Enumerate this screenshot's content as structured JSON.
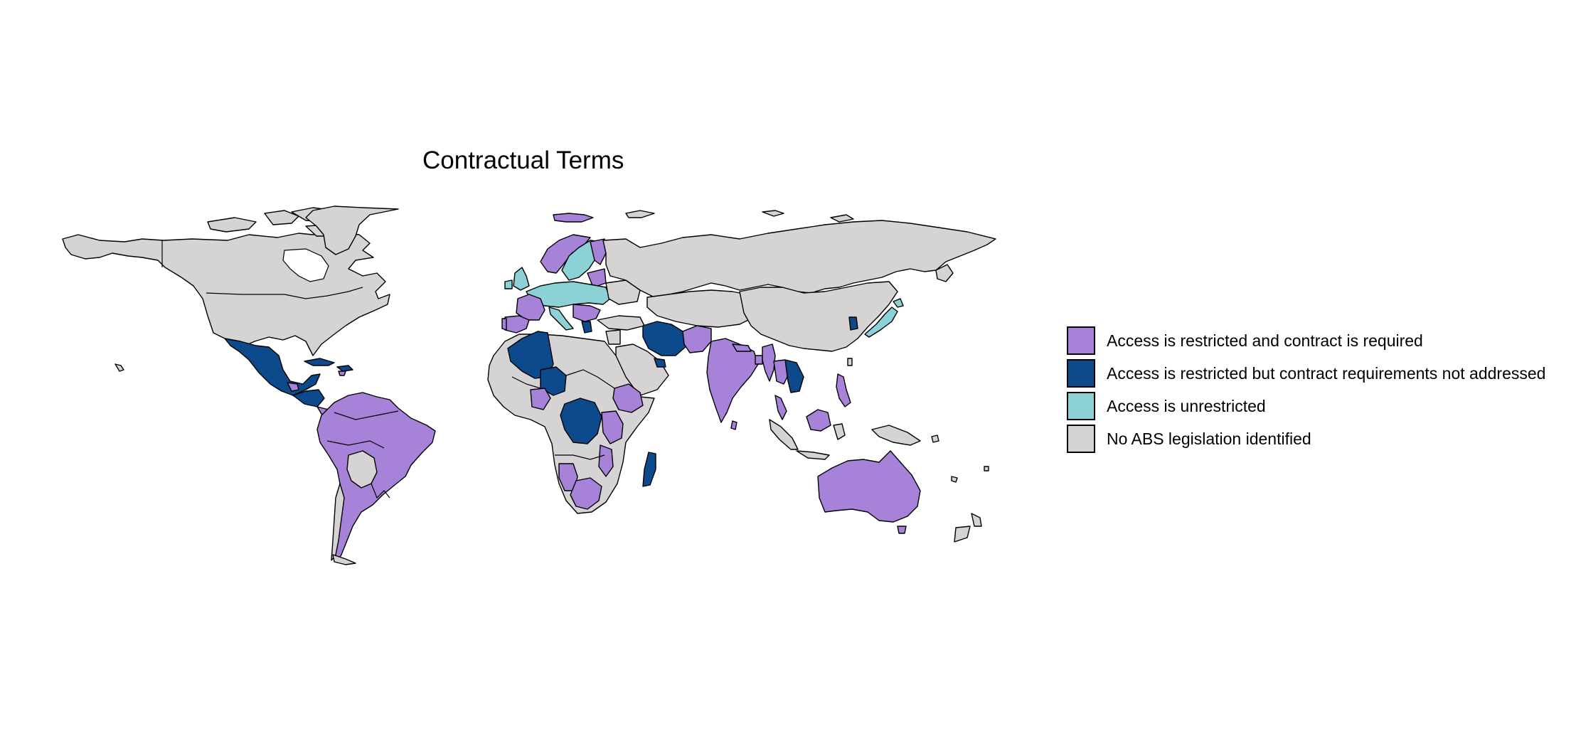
{
  "title": "Contractual Terms",
  "colors": {
    "restricted_contract": "#a682d8",
    "restricted_no_contract": "#0c4a8c",
    "unrestricted": "#8bd1d5",
    "no_legislation": "#d6d3d5",
    "water": "#ffffff",
    "outline": "#000000"
  },
  "legend": {
    "items": [
      {
        "label": "Access is restricted and contract is required",
        "category": "restricted_contract",
        "color": "#a682d8"
      },
      {
        "label": "Access is restricted but contract requirements not addressed",
        "category": "restricted_no_contract",
        "color": "#0c4a8c"
      },
      {
        "label": "Access is unrestricted",
        "category": "unrestricted",
        "color": "#8bd1d5"
      },
      {
        "label": "No ABS legislation identified",
        "category": "no_legislation",
        "color": "#d6d3d5"
      }
    ]
  }
}
